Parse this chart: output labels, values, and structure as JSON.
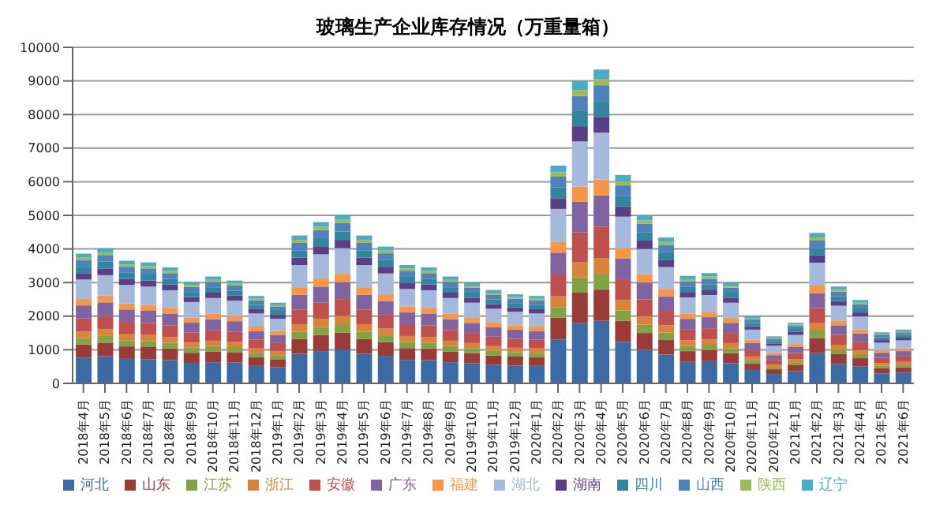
{
  "chart_data": {
    "type": "bar",
    "stacked": true,
    "title": "玻璃生产企业库存情况（万重量箱）",
    "categories": [
      "2018年4月",
      "2018年5月",
      "2018年6月",
      "2018年7月",
      "2018年8月",
      "2018年9月",
      "2018年10月",
      "2018年11月",
      "2018年12月",
      "2019年1月",
      "2019年2月",
      "2019年3月",
      "2019年4月",
      "2019年5月",
      "2019年6月",
      "2019年7月",
      "2019年8月",
      "2019年9月",
      "2019年10月",
      "2019年11月",
      "2019年12月",
      "2020年1月",
      "2020年2月",
      "2020年3月",
      "2020年4月",
      "2020年5月",
      "2020年6月",
      "2020年7月",
      "2020年8月",
      "2020年9月",
      "2020年10月",
      "2020年11月",
      "2020年12月",
      "2021年1月",
      "2021年2月",
      "2021年3月",
      "2021年4月",
      "2021年5月",
      "2021年6月"
    ],
    "series": [
      {
        "name": "河北",
        "color": "#3c6aa5",
        "values": [
          770,
          810,
          730,
          720,
          690,
          610,
          630,
          620,
          520,
          480,
          880,
          960,
          1010,
          880,
          820,
          700,
          690,
          630,
          600,
          550,
          530,
          520,
          1300,
          1800,
          1860,
          1240,
          1000,
          860,
          640,
          660,
          600,
          400,
          280,
          360,
          900,
          580,
          500,
          300,
          320
        ]
      },
      {
        "name": "山东",
        "color": "#9b3b38",
        "values": [
          390,
          400,
          370,
          360,
          350,
          300,
          320,
          310,
          260,
          240,
          440,
          480,
          500,
          440,
          410,
          350,
          350,
          320,
          300,
          280,
          270,
          260,
          650,
          900,
          930,
          620,
          500,
          430,
          320,
          330,
          300,
          200,
          140,
          180,
          450,
          290,
          250,
          150,
          160
        ]
      },
      {
        "name": "江苏",
        "color": "#82a244",
        "values": [
          190,
          200,
          180,
          180,
          170,
          150,
          160,
          150,
          130,
          120,
          220,
          240,
          250,
          220,
          200,
          180,
          170,
          160,
          150,
          140,
          130,
          130,
          320,
          450,
          470,
          310,
          250,
          220,
          160,
          160,
          150,
          100,
          70,
          90,
          220,
          140,
          120,
          80,
          80
        ]
      },
      {
        "name": "浙江",
        "color": "#d9843a",
        "values": [
          190,
          200,
          180,
          180,
          170,
          150,
          160,
          150,
          130,
          120,
          220,
          240,
          250,
          220,
          200,
          180,
          170,
          160,
          150,
          140,
          130,
          130,
          320,
          450,
          470,
          310,
          250,
          220,
          160,
          160,
          150,
          100,
          70,
          90,
          220,
          140,
          120,
          80,
          80
        ]
      },
      {
        "name": "安徽",
        "color": "#c0504d",
        "values": [
          390,
          400,
          370,
          360,
          350,
          300,
          320,
          310,
          260,
          240,
          440,
          480,
          500,
          440,
          410,
          350,
          350,
          320,
          300,
          280,
          270,
          260,
          650,
          900,
          930,
          620,
          500,
          430,
          320,
          330,
          300,
          200,
          140,
          180,
          450,
          290,
          250,
          150,
          160
        ]
      },
      {
        "name": "广东",
        "color": "#8064a2",
        "values": [
          390,
          400,
          370,
          360,
          350,
          300,
          320,
          310,
          260,
          240,
          440,
          480,
          500,
          440,
          410,
          350,
          350,
          320,
          300,
          280,
          270,
          260,
          650,
          900,
          930,
          620,
          500,
          430,
          320,
          330,
          300,
          200,
          140,
          180,
          450,
          290,
          250,
          150,
          160
        ]
      },
      {
        "name": "福建",
        "color": "#f79646",
        "values": [
          190,
          200,
          180,
          180,
          170,
          150,
          160,
          150,
          130,
          120,
          220,
          240,
          250,
          220,
          200,
          180,
          170,
          160,
          150,
          140,
          130,
          130,
          320,
          450,
          470,
          310,
          250,
          220,
          160,
          160,
          150,
          100,
          70,
          90,
          220,
          140,
          120,
          80,
          80
        ]
      },
      {
        "name": "湖北",
        "color": "#a5b9dc",
        "values": [
          580,
          610,
          550,
          540,
          520,
          460,
          470,
          460,
          390,
          360,
          660,
          720,
          760,
          660,
          620,
          520,
          520,
          470,
          450,
          410,
          400,
          390,
          980,
          1350,
          1400,
          930,
          750,
          650,
          480,
          500,
          450,
          300,
          210,
          270,
          680,
          440,
          380,
          220,
          240
        ]
      },
      {
        "name": "湖南",
        "color": "#5b3f86",
        "values": [
          190,
          200,
          180,
          180,
          170,
          150,
          160,
          150,
          130,
          120,
          220,
          240,
          250,
          220,
          200,
          180,
          170,
          160,
          150,
          140,
          130,
          130,
          320,
          450,
          470,
          310,
          250,
          220,
          160,
          160,
          150,
          100,
          70,
          90,
          220,
          140,
          120,
          80,
          80
        ]
      },
      {
        "name": "四川",
        "color": "#31859c",
        "values": [
          190,
          200,
          180,
          180,
          170,
          150,
          160,
          150,
          130,
          120,
          220,
          240,
          250,
          220,
          200,
          180,
          170,
          160,
          150,
          140,
          130,
          130,
          320,
          450,
          470,
          310,
          250,
          220,
          160,
          160,
          150,
          100,
          70,
          90,
          220,
          140,
          120,
          80,
          80
        ]
      },
      {
        "name": "山西",
        "color": "#4f81bd",
        "values": [
          190,
          200,
          180,
          180,
          170,
          150,
          160,
          150,
          130,
          120,
          220,
          240,
          250,
          220,
          200,
          180,
          170,
          160,
          150,
          140,
          130,
          130,
          320,
          450,
          470,
          310,
          250,
          220,
          160,
          160,
          150,
          100,
          70,
          90,
          220,
          140,
          120,
          80,
          80
        ]
      },
      {
        "name": "陕西",
        "color": "#9bbb59",
        "values": [
          80,
          80,
          70,
          70,
          70,
          60,
          60,
          60,
          50,
          50,
          90,
          100,
          100,
          90,
          80,
          70,
          70,
          60,
          60,
          60,
          50,
          50,
          130,
          180,
          190,
          120,
          100,
          90,
          60,
          70,
          60,
          40,
          30,
          40,
          90,
          60,
          50,
          30,
          30
        ]
      },
      {
        "name": "辽宁",
        "color": "#4bacc6",
        "values": [
          120,
          120,
          110,
          110,
          100,
          90,
          100,
          90,
          80,
          70,
          130,
          140,
          150,
          130,
          120,
          100,
          100,
          100,
          90,
          80,
          80,
          80,
          200,
          270,
          280,
          190,
          150,
          130,
          100,
          100,
          90,
          60,
          40,
          50,
          140,
          90,
          80,
          40,
          50
        ]
      }
    ],
    "ylim": [
      0,
      10000
    ],
    "yticks": [
      0,
      1000,
      2000,
      3000,
      4000,
      5000,
      6000,
      7000,
      8000,
      9000,
      10000
    ],
    "grid": "y",
    "legend": "bottom"
  }
}
